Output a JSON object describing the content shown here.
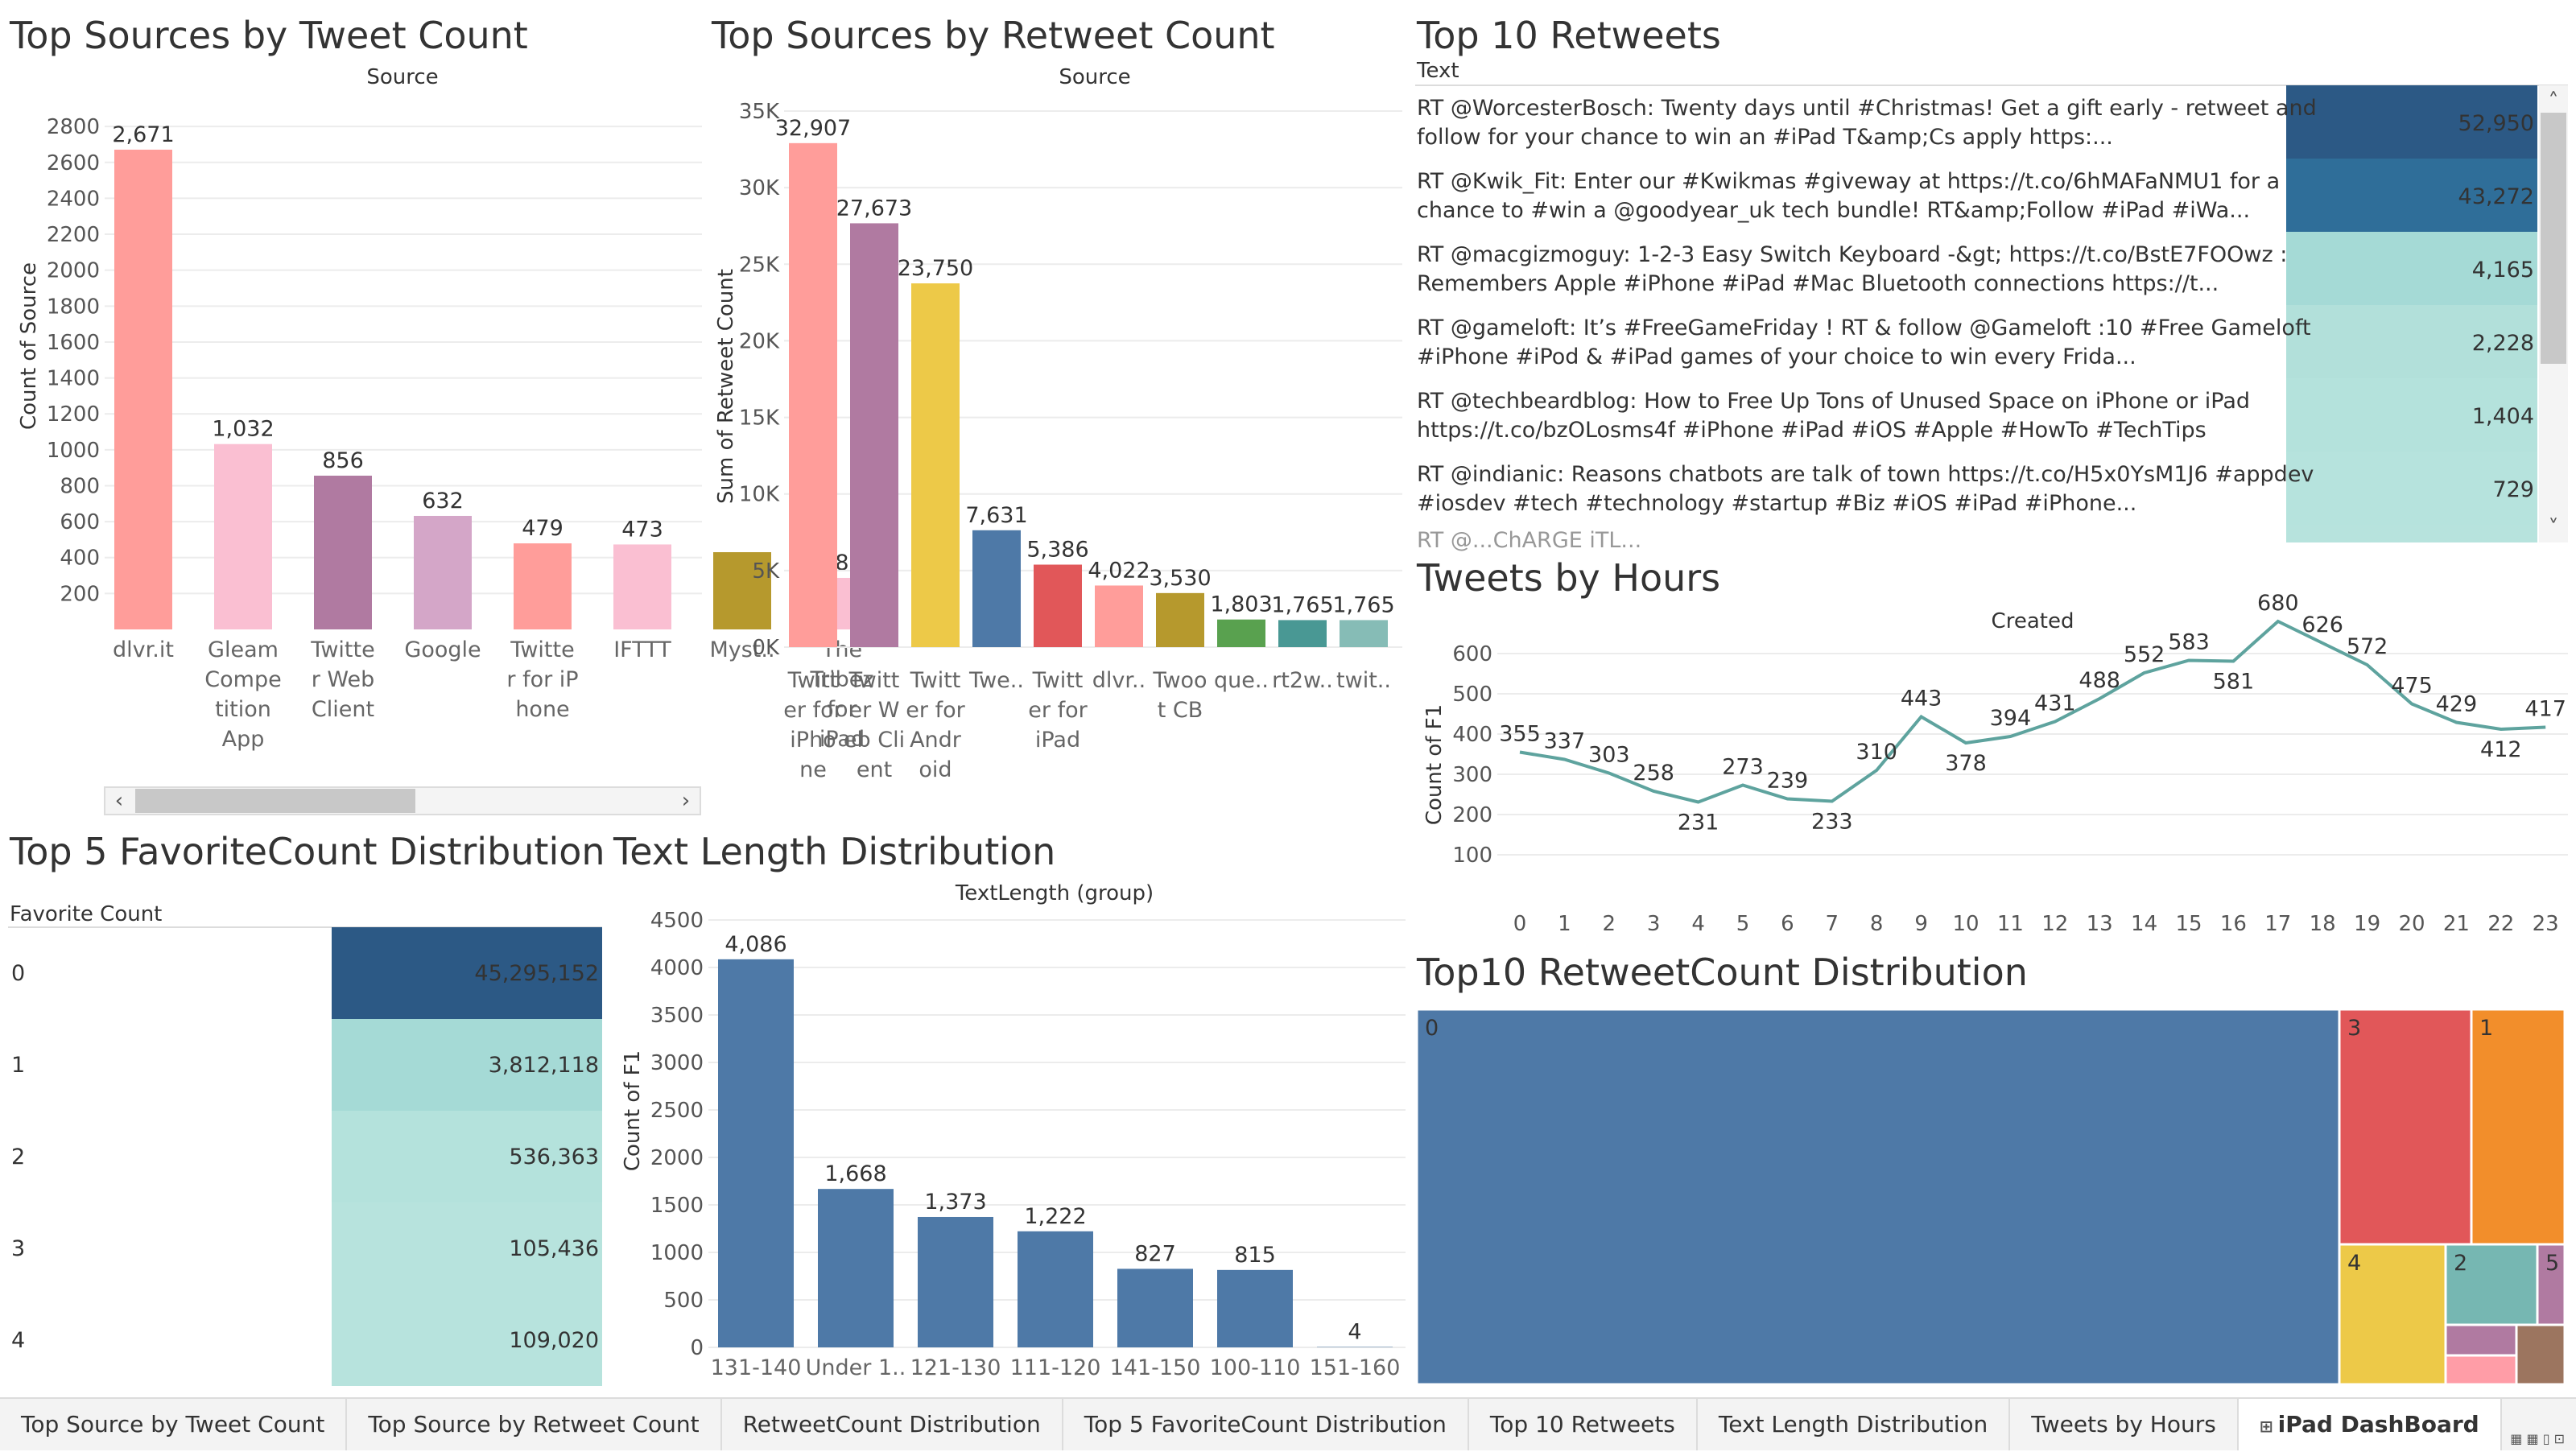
{
  "tabs": [
    "Top Source by Tweet Count",
    "Top Source by Retweet Count",
    "RetweetCount Distribution",
    "Top 5 FavoriteCount Distribution",
    "Top 10 Retweets",
    "Text Length Distribution",
    "Tweets by Hours",
    "iPad DashBoard"
  ],
  "active_tab": 7,
  "chart_data": [
    {
      "type": "bar",
      "title": "Top Sources by Tweet Count",
      "subtitle": "Source",
      "ylabel": "Count of Source",
      "ylim": [
        0,
        2850
      ],
      "yticks": [
        200,
        400,
        600,
        800,
        1000,
        1200,
        1400,
        1600,
        1800,
        2000,
        2200,
        2400,
        2600,
        2800
      ],
      "categories": [
        "dlvr.it",
        "Gleam Competition App",
        "Twitter Web Client",
        "Google",
        "Twitter for iPhone",
        "IFTTT",
        "Myst..",
        "The Tribez for iPad"
      ],
      "category_labels": [
        [
          "dlvr.it"
        ],
        [
          "Gleam",
          "Compe",
          "tition",
          "App"
        ],
        [
          "Twitte",
          "r Web",
          "Client"
        ],
        [
          "Google"
        ],
        [
          "Twitte",
          "r for iP",
          "hone"
        ],
        [
          "IFTTT"
        ],
        [
          "Myst.."
        ],
        [
          "The",
          "Tribez",
          "for",
          "iPad"
        ]
      ],
      "values": [
        2671,
        1032,
        856,
        632,
        479,
        473,
        430,
        287
      ],
      "data_labels": [
        "2,671",
        "1,032",
        "856",
        "632",
        "479",
        "473",
        "",
        "287"
      ],
      "colors": [
        "#ff9d9a",
        "#fabfd2",
        "#b07aa1",
        "#d4a6c8",
        "#ff9d9a",
        "#fabfd2",
        "#b6992d",
        "#fabfd2"
      ],
      "scroll_left": "‹",
      "scroll_right": "›"
    },
    {
      "type": "bar",
      "title": "Top Sources by Retweet Count",
      "subtitle": "Source",
      "ylabel": "Sum of Retweet Count",
      "ylim": [
        0,
        35000
      ],
      "yticks": [
        0,
        5000,
        10000,
        15000,
        20000,
        25000,
        30000,
        35000
      ],
      "ytick_labels": [
        "0K",
        "5K",
        "10K",
        "15K",
        "20K",
        "25K",
        "30K",
        "35K"
      ],
      "categories": [
        "Twitter for iPhone",
        "Twitter Web Client",
        "Twitter for Android",
        "Twe..",
        "Twitter for iPad",
        "dlvr..",
        "Twoot CB",
        "que..",
        "rt2w..",
        "twit.."
      ],
      "category_labels": [
        [
          "Twitt",
          "er for",
          "iPho",
          "ne"
        ],
        [
          "Twitt",
          "er W",
          "eb Cli",
          "ent"
        ],
        [
          "Twitt",
          "er for",
          "Andr",
          "oid"
        ],
        [
          "Twe.."
        ],
        [
          "Twitt",
          "er for",
          "iPad"
        ],
        [
          "dlvr.."
        ],
        [
          "Twoo",
          "t CB"
        ],
        [
          "que.."
        ],
        [
          "rt2w.."
        ],
        [
          "twit.."
        ]
      ],
      "values": [
        32907,
        27673,
        23750,
        7631,
        5386,
        4022,
        3530,
        1803,
        1765,
        1765
      ],
      "data_labels": [
        "32,907",
        "27,673",
        "23,750",
        "7,631",
        "5,386",
        "4,022",
        "3,530",
        "1,803",
        "1,765",
        "1,765"
      ],
      "colors": [
        "#ff9d9a",
        "#b07aa1",
        "#edc948",
        "#4e79a7",
        "#e15759",
        "#ff9d9a",
        "#b6992d",
        "#59a14f",
        "#499894",
        "#86bcb6"
      ]
    },
    {
      "type": "table",
      "title": "Top 10 Retweets",
      "column_header": "Text",
      "rows": [
        {
          "line1": "RT @WorcesterBosch: Twenty days until #Christmas! Get a gift early - retweet and",
          "line2": "follow for your chance to win an #iPad T&amp;Cs apply https:...",
          "value": 52950,
          "label": "52,950",
          "color": "#2c5985"
        },
        {
          "line1": "RT @Kwik_Fit: Enter our #Kwikmas #giveway at https://t.co/6hMAFaNMU1 for a",
          "line2": "chance to #win a @goodyear_uk tech bundle! RT&amp;Follow #iPad #iWa...",
          "value": 43272,
          "label": "43,272",
          "color": "#2f6e99"
        },
        {
          "line1": "RT @macgizmoguy: 1-2-3 Easy Switch Keyboard -&gt; https://t.co/BstE7FOOwz :",
          "line2": "Remembers Apple #iPhone #iPad #Mac Bluetooth connections https://t...",
          "value": 4165,
          "label": "4,165",
          "color": "#a5dad6"
        },
        {
          "line1": "RT @gameloft: It’s #FreeGameFriday ! RT & follow @Gameloft :10 #Free Gameloft",
          "line2": "#iPhone #iPod & #iPad games of your choice to win every Frida...",
          "value": 2228,
          "label": "2,228",
          "color": "#b2e0da"
        },
        {
          "line1": "RT @techbeardblog: How to Free Up Tons of Unused Space on iPhone or iPad",
          "line2": "https://t.co/bzOLosms4f #iPhone #iPad #iOS #Apple #HowTo #TechTips",
          "value": 1404,
          "label": "1,404",
          "color": "#b4e2dc"
        },
        {
          "line1": "RT @indianic: Reasons chatbots are talk of town https://t.co/H5x0YsM1J6 #appdev",
          "line2": "#iosdev #tech #technology #startup #Biz #iOS #iPad #iPhone...",
          "value": 729,
          "label": "729",
          "color": "#b6e3dd"
        }
      ],
      "partial_row": "RT @...ChARGE iTL...",
      "scroll_up": "˄",
      "scroll_down": "˅"
    },
    {
      "type": "line",
      "title": "Tweets by Hours",
      "subtitle": "Created",
      "ylabel": "Count of F1",
      "ylim": [
        0,
        700
      ],
      "yticks": [
        100,
        200,
        300,
        400,
        500,
        600
      ],
      "x": [
        0,
        1,
        2,
        3,
        4,
        5,
        6,
        7,
        8,
        9,
        10,
        11,
        12,
        13,
        14,
        15,
        16,
        17,
        18,
        19,
        20,
        21,
        22,
        23
      ],
      "values": [
        355,
        337,
        303,
        258,
        231,
        273,
        239,
        233,
        310,
        443,
        378,
        394,
        431,
        488,
        552,
        583,
        581,
        680,
        626,
        572,
        475,
        429,
        412,
        417
      ],
      "color": "#5ea39e"
    },
    {
      "type": "table",
      "title": "Top 5 FavoriteCount Distribution",
      "column_header": "Favorite Count",
      "categories": [
        "0",
        "1",
        "2",
        "3",
        "4"
      ],
      "values": [
        45295152,
        3812118,
        536363,
        105436,
        109020
      ],
      "data_labels": [
        "45,295,152",
        "3,812,118",
        "536,363",
        "105,436",
        "109,020"
      ],
      "colors": [
        "#2c5985",
        "#a5dad6",
        "#b4e2dc",
        "#b7e3dd",
        "#b7e3dd"
      ]
    },
    {
      "type": "bar",
      "title": "Text Length Distribution",
      "subtitle": "TextLength (group)",
      "ylabel": "Count of F1",
      "ylim": [
        0,
        4500
      ],
      "yticks": [
        0,
        500,
        1000,
        1500,
        2000,
        2500,
        3000,
        3500,
        4000,
        4500
      ],
      "categories": [
        "131-140",
        "Under 1..",
        "121-130",
        "111-120",
        "141-150",
        "100-110",
        "151-160"
      ],
      "values": [
        4086,
        1668,
        1373,
        1222,
        827,
        815,
        4
      ],
      "data_labels": [
        "4,086",
        "1,668",
        "1,373",
        "1,222",
        "827",
        "815",
        "4"
      ],
      "color": "#4e79a7"
    },
    {
      "type": "treemap",
      "title": "Top10 RetweetCount Distribution",
      "labels": [
        "0",
        "3",
        "1",
        "4",
        "2",
        "5",
        "",
        "",
        ""
      ],
      "colors": [
        "#4e79a7",
        "#e15759",
        "#f28e2b",
        "#edc948",
        "#76b7b2",
        "#b07aa1",
        "#b07aa1",
        "#ff9da7",
        "#9c755f"
      ]
    }
  ]
}
